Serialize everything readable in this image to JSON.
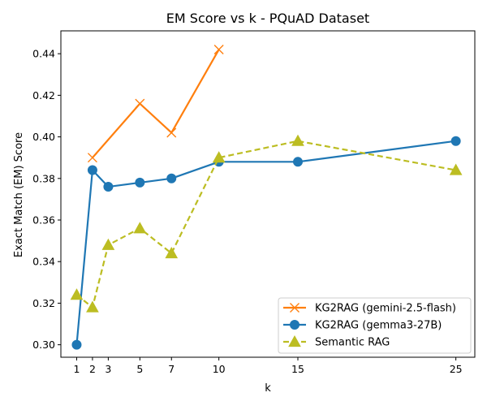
{
  "chart_data": {
    "type": "line",
    "title": "EM Score vs k - PQuAD Dataset",
    "xlabel": "k",
    "ylabel": "Exact Match (EM) Score",
    "xlim": [
      0.0,
      26.2
    ],
    "ylim": [
      0.294,
      0.451
    ],
    "xticks": [
      1,
      2,
      3,
      5,
      7,
      10,
      15,
      25
    ],
    "yticks": [
      0.3,
      0.32,
      0.34,
      0.36,
      0.38,
      0.4,
      0.42,
      0.44
    ],
    "xtick_labels": [
      "1",
      "2",
      "3",
      "5",
      "7",
      "10",
      "15",
      "25"
    ],
    "ytick_labels": [
      "0.30",
      "0.32",
      "0.34",
      "0.36",
      "0.38",
      "0.40",
      "0.42",
      "0.44"
    ],
    "grid": false,
    "legend_position": "bottom-right",
    "series": [
      {
        "name": "KG2RAG (gemini-2.5-flash)",
        "color": "#ff7f0e",
        "marker": "x",
        "line_style": "solid",
        "x": [
          2,
          5,
          7,
          10
        ],
        "y": [
          0.39,
          0.416,
          0.402,
          0.442
        ]
      },
      {
        "name": "KG2RAG (gemma3-27B)",
        "color": "#1f77b4",
        "marker": "circle",
        "line_style": "solid",
        "x": [
          1,
          2,
          3,
          5,
          7,
          10,
          15,
          25
        ],
        "y": [
          0.3,
          0.384,
          0.376,
          0.378,
          0.38,
          0.388,
          0.388,
          0.398
        ]
      },
      {
        "name": "Semantic RAG",
        "color": "#bcbd22",
        "marker": "triangle",
        "line_style": "dashed",
        "x": [
          1,
          2,
          3,
          5,
          7,
          10,
          15,
          25
        ],
        "y": [
          0.324,
          0.318,
          0.348,
          0.356,
          0.344,
          0.39,
          0.398,
          0.384
        ]
      }
    ]
  }
}
